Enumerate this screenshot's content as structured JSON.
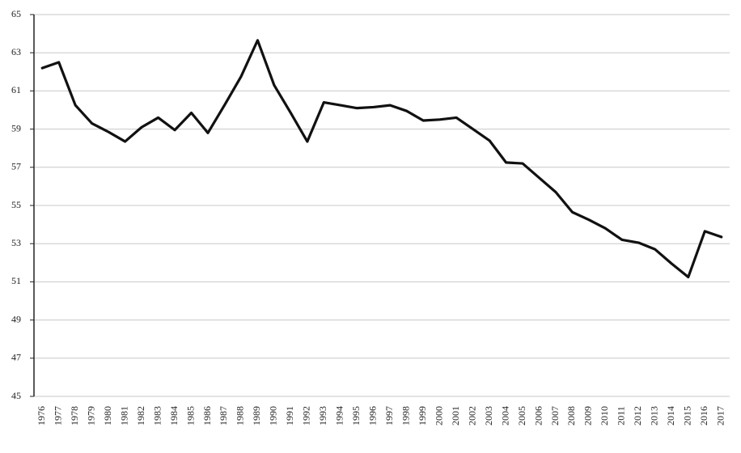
{
  "chart_data": {
    "type": "line",
    "categories": [
      "1976",
      "1977",
      "1978",
      "1979",
      "1980",
      "1981",
      "1982",
      "1983",
      "1984",
      "1985",
      "1986",
      "1987",
      "1988",
      "1989",
      "1990",
      "1991",
      "1992",
      "1993",
      "1994",
      "1995",
      "1996",
      "1997",
      "1998",
      "1999",
      "2000",
      "2001",
      "2002",
      "2003",
      "2004",
      "2005",
      "2006",
      "2007",
      "2008",
      "2009",
      "2010",
      "2011",
      "2012",
      "2013",
      "2014",
      "2015",
      "2016",
      "2017"
    ],
    "values": [
      62.2,
      62.5,
      60.25,
      59.3,
      58.85,
      58.35,
      59.1,
      59.6,
      58.95,
      59.85,
      58.8,
      60.25,
      61.75,
      63.65,
      61.3,
      59.85,
      58.35,
      60.4,
      60.25,
      60.1,
      60.15,
      60.25,
      59.95,
      59.45,
      59.5,
      59.6,
      59.0,
      58.4,
      57.25,
      57.2,
      56.45,
      55.7,
      54.65,
      54.25,
      53.8,
      53.2,
      53.05,
      52.7,
      51.95,
      51.25,
      53.65,
      53.35
    ],
    "color": "#111111",
    "ylim": [
      45,
      65
    ],
    "yticks": [
      45,
      47,
      49,
      51,
      53,
      55,
      57,
      59,
      61,
      63,
      65
    ],
    "grid": true
  }
}
